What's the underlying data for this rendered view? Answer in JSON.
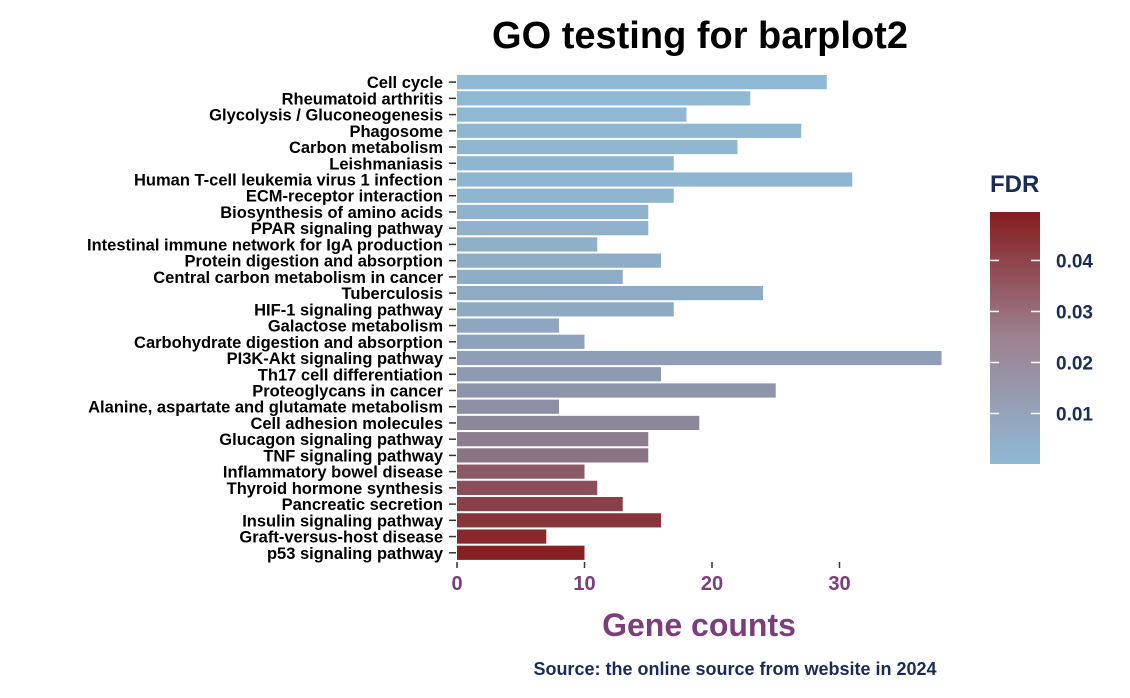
{
  "chart_data": {
    "type": "bar",
    "orientation": "horizontal",
    "title": "GO testing for barplot2",
    "xlabel": "Gene counts",
    "ylabel": "",
    "caption": "Source: the online source from website in 2024",
    "xlim": [
      0,
      38.5
    ],
    "xticks": [
      0,
      10,
      20,
      30
    ],
    "grid": false,
    "legend": {
      "title": "FDR",
      "placement": "right",
      "type": "colorbar",
      "range": [
        0.0001,
        0.0495
      ],
      "ticks": [
        0.01,
        0.02,
        0.03,
        0.04
      ],
      "tick_labels": [
        "0.01",
        "0.02",
        "0.03",
        "0.04"
      ],
      "low_color": "#8fb9d4",
      "high_color": "#861d20"
    },
    "colors": {
      "x_axis_text": "#7a3e7a",
      "legend_text": "#1a2b55",
      "caption_text": "#1a2b55"
    },
    "categories": [
      "Cell cycle",
      "Rheumatoid arthritis",
      "Glycolysis / Gluconeogenesis",
      "Phagosome",
      "Carbon metabolism",
      "Leishmaniasis",
      "Human T-cell leukemia virus 1 infection",
      "ECM-receptor interaction",
      "Biosynthesis of amino acids",
      "PPAR signaling pathway",
      "Intestinal immune network for IgA production",
      "Protein digestion and absorption",
      "Central carbon metabolism in cancer",
      "Tuberculosis",
      "HIF-1 signaling pathway",
      "Galactose metabolism",
      "Carbohydrate digestion and absorption",
      "PI3K-Akt signaling pathway",
      "Th17 cell differentiation",
      "Proteoglycans in cancer",
      "Alanine, aspartate and glutamate metabolism",
      "Cell adhesion molecules",
      "Glucagon signaling pathway",
      "TNF signaling pathway",
      "Inflammatory bowel disease",
      "Thyroid hormone synthesis",
      "Pancreatic secretion",
      "Insulin signaling pathway",
      "Graft-versus-host disease",
      "p53 signaling pathway"
    ],
    "values": [
      29,
      23,
      18,
      27,
      22,
      17,
      31,
      17,
      15,
      15,
      11,
      16,
      13,
      24,
      17,
      8,
      10,
      38,
      16,
      25,
      8,
      19,
      15,
      15,
      10,
      11,
      13,
      16,
      7,
      10
    ],
    "fdr": [
      0.0002,
      0.0004,
      0.0005,
      0.0007,
      0.0008,
      0.001,
      0.0012,
      0.0015,
      0.002,
      0.0025,
      0.003,
      0.0035,
      0.004,
      0.0045,
      0.005,
      0.006,
      0.007,
      0.0085,
      0.01,
      0.0115,
      0.013,
      0.016,
      0.019,
      0.022,
      0.03,
      0.034,
      0.038,
      0.042,
      0.046,
      0.049
    ]
  }
}
